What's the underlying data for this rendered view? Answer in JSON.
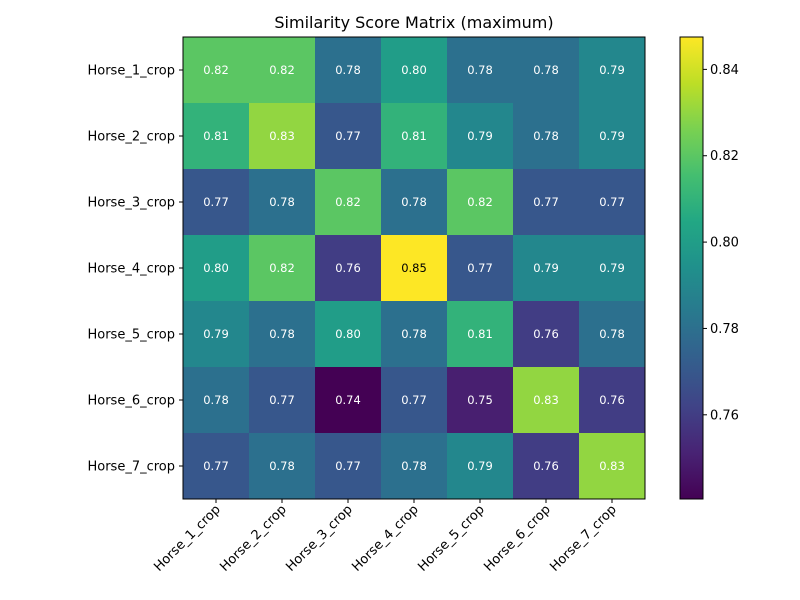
{
  "chart_data": {
    "type": "heatmap",
    "title": "Similarity Score Matrix (maximum)",
    "row_labels": [
      "Horse_1_crop",
      "Horse_2_crop",
      "Horse_3_crop",
      "Horse_4_crop",
      "Horse_5_crop",
      "Horse_6_crop",
      "Horse_7_crop"
    ],
    "col_labels": [
      "Horse_1_crop",
      "Horse_2_crop",
      "Horse_3_crop",
      "Horse_4_crop",
      "Horse_5_crop",
      "Horse_6_crop",
      "Horse_7_crop"
    ],
    "values": [
      [
        0.82,
        0.82,
        0.78,
        0.8,
        0.78,
        0.78,
        0.79
      ],
      [
        0.81,
        0.83,
        0.77,
        0.81,
        0.79,
        0.78,
        0.79
      ],
      [
        0.77,
        0.78,
        0.82,
        0.78,
        0.82,
        0.77,
        0.77
      ],
      [
        0.8,
        0.82,
        0.76,
        0.85,
        0.77,
        0.79,
        0.79
      ],
      [
        0.79,
        0.78,
        0.8,
        0.78,
        0.81,
        0.76,
        0.78
      ],
      [
        0.78,
        0.77,
        0.74,
        0.77,
        0.75,
        0.83,
        0.76
      ],
      [
        0.77,
        0.78,
        0.77,
        0.78,
        0.79,
        0.76,
        0.83
      ]
    ],
    "value_format_decimals": 2,
    "colormap": "viridis",
    "color_range": [
      0.7405,
      0.8475
    ],
    "colorbar_ticks": [
      0.76,
      0.78,
      0.8,
      0.82,
      0.84
    ],
    "colorbar_tick_labels": [
      "0.76",
      "0.78",
      "0.80",
      "0.82",
      "0.84"
    ],
    "x_tick_rotation_deg": 45,
    "grid": false
  }
}
